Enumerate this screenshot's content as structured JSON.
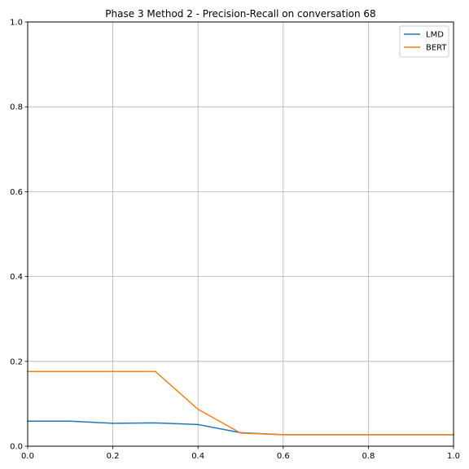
{
  "chart_data": {
    "type": "line",
    "title": "Phase 3 Method 2 - Precision-Recall on conversation 68",
    "xlabel": "",
    "ylabel": "",
    "xlim": [
      0,
      1
    ],
    "ylim": [
      0,
      1
    ],
    "x_ticks": [
      "0.0",
      "0.2",
      "0.4",
      "0.6",
      "0.8",
      "1.0"
    ],
    "y_ticks": [
      "0.0",
      "0.2",
      "0.4",
      "0.6",
      "0.8",
      "1.0"
    ],
    "grid": true,
    "legend_position": "top-right",
    "x": [
      0.0,
      0.1,
      0.2,
      0.3,
      0.4,
      0.5,
      0.6,
      0.7,
      0.8,
      0.9,
      1.0
    ],
    "series": [
      {
        "name": "LMD",
        "color": "#1f77b4",
        "values": [
          0.059,
          0.059,
          0.054,
          0.055,
          0.051,
          0.032,
          0.027,
          0.027,
          0.027,
          0.027,
          0.027
        ]
      },
      {
        "name": "BERT",
        "color": "#ff7f0e",
        "values": [
          0.176,
          0.176,
          0.176,
          0.176,
          0.087,
          0.031,
          0.027,
          0.027,
          0.027,
          0.027,
          0.027
        ]
      }
    ]
  }
}
